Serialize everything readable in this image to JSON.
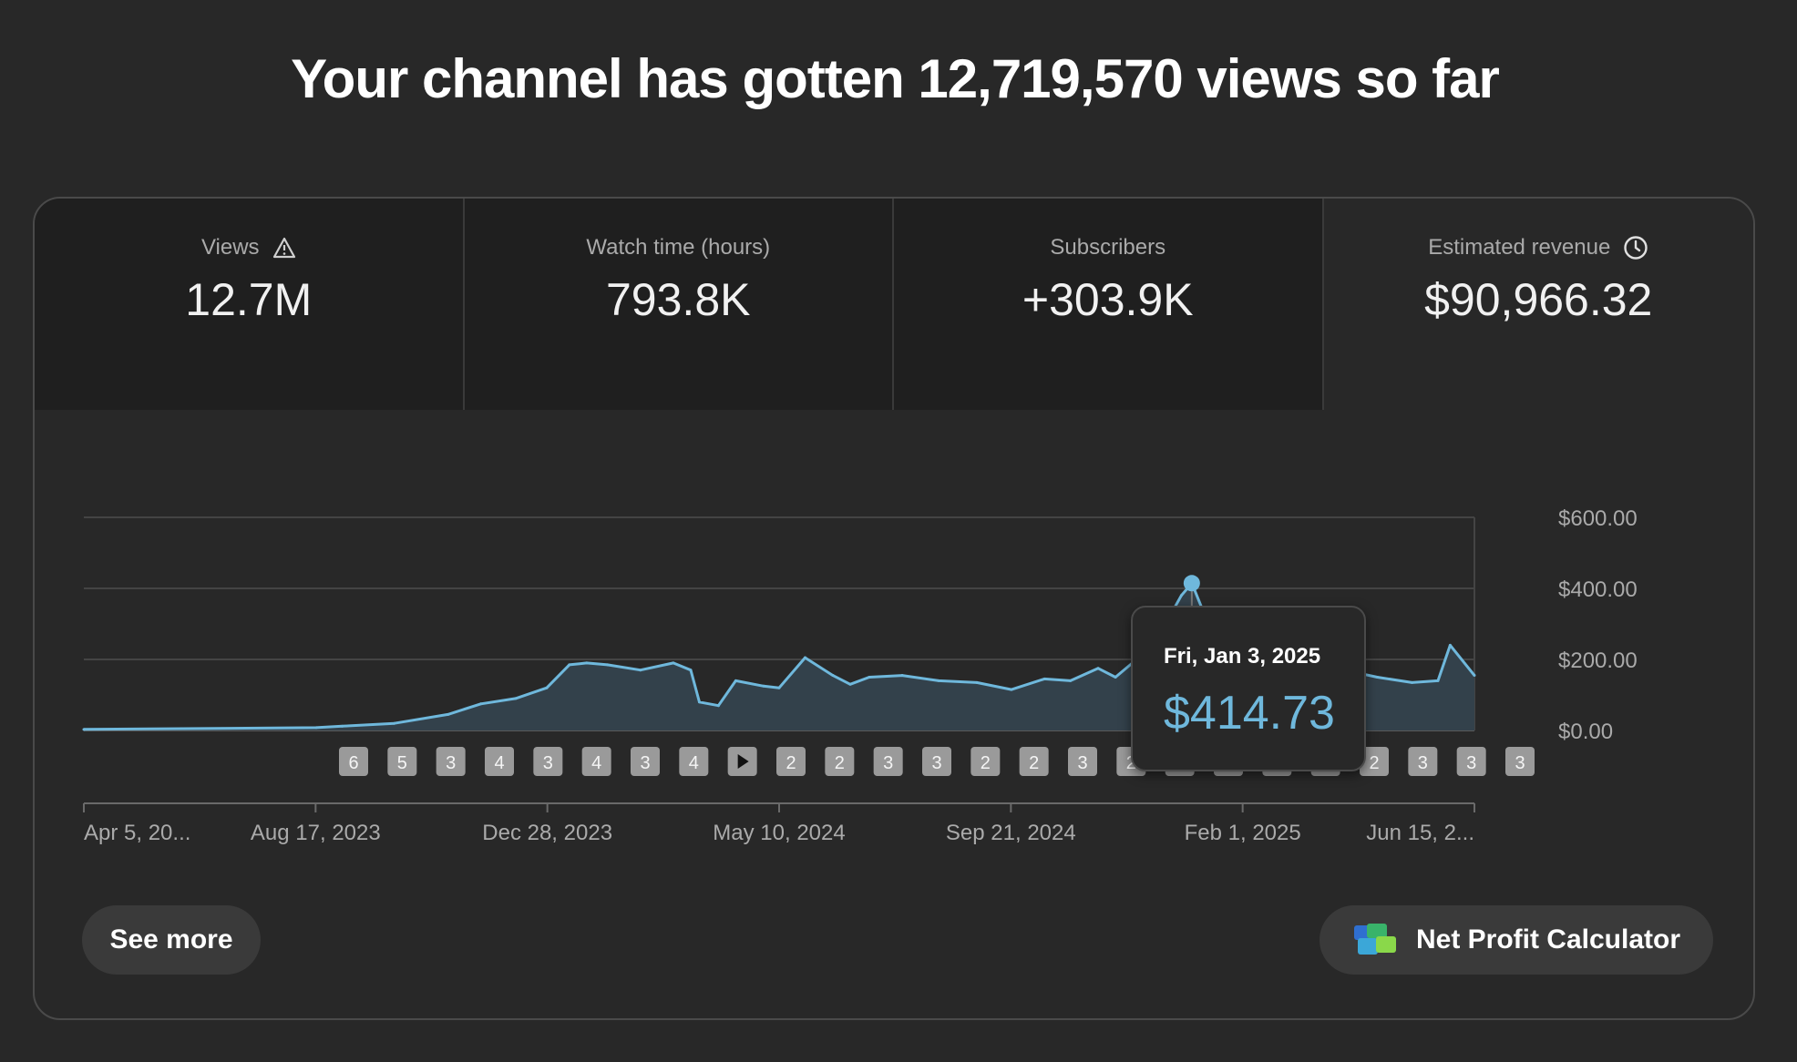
{
  "headline": "Your channel has gotten 12,719,570 views so far",
  "metrics": [
    {
      "label": "Views",
      "value": "12.7M",
      "icon": "warning-triangle-icon"
    },
    {
      "label": "Watch time (hours)",
      "value": "793.8K"
    },
    {
      "label": "Subscribers",
      "value": "+303.9K"
    },
    {
      "label": "Estimated revenue",
      "value": "$90,966.32",
      "icon": "clock-icon",
      "selected": true
    }
  ],
  "tooltip": {
    "date": "Fri, Jan 3, 2025",
    "value": "$414.73"
  },
  "buttons": {
    "see_more": "See more",
    "net_profit_calculator": "Net Profit Calculator"
  },
  "colors": {
    "line": "#6fb8dc",
    "area": "#33414b",
    "background": "#282828"
  },
  "chart_data": {
    "type": "area",
    "series_name": "Estimated revenue",
    "y_ticks": [
      "$600.00",
      "$400.00",
      "$200.00",
      "$0.00"
    ],
    "ylim": [
      0,
      600
    ],
    "x_tick_labels": [
      "Apr 5, 20...",
      "Aug 17, 2023",
      "Dec 28, 2023",
      "May 10, 2024",
      "Sep 21, 2024",
      "Feb 1, 2025",
      "Jun 15, 2..."
    ],
    "x_range": [
      "2023-04-05",
      "2025-06-15"
    ],
    "x": [
      "2023-04-05",
      "2023-08-17",
      "2023-09-01",
      "2023-10-01",
      "2023-11-01",
      "2023-11-20",
      "2023-12-10",
      "2023-12-28",
      "2024-01-10",
      "2024-01-20",
      "2024-02-01",
      "2024-02-20",
      "2024-03-10",
      "2024-03-20",
      "2024-03-25",
      "2024-04-05",
      "2024-04-15",
      "2024-05-01",
      "2024-05-10",
      "2024-05-25",
      "2024-06-10",
      "2024-06-20",
      "2024-07-01",
      "2024-07-20",
      "2024-08-10",
      "2024-09-01",
      "2024-09-21",
      "2024-10-10",
      "2024-10-25",
      "2024-11-10",
      "2024-11-20",
      "2024-12-01",
      "2024-12-10",
      "2024-12-20",
      "2024-12-28",
      "2025-01-03",
      "2025-01-10",
      "2025-01-25",
      "2025-02-01",
      "2025-02-20",
      "2025-03-10",
      "2025-04-01",
      "2025-04-20",
      "2025-05-10",
      "2025-05-25",
      "2025-06-01",
      "2025-06-15"
    ],
    "y": [
      3,
      8,
      12,
      20,
      45,
      75,
      90,
      120,
      185,
      190,
      185,
      170,
      190,
      170,
      80,
      70,
      140,
      125,
      120,
      205,
      155,
      130,
      150,
      155,
      140,
      135,
      115,
      145,
      140,
      175,
      150,
      195,
      160,
      310,
      380,
      414.73,
      330,
      260,
      225,
      210,
      215,
      170,
      150,
      135,
      140,
      240,
      155
    ],
    "highlight": {
      "x": "2025-01-03",
      "y": 414.73
    },
    "annotation_markers": [
      "6",
      "5",
      "3",
      "4",
      "3",
      "4",
      "3",
      "4",
      "play",
      "2",
      "2",
      "3",
      "3",
      "2",
      "2",
      "3",
      "2",
      "2",
      "3",
      "3",
      "3",
      "2",
      "3",
      "3",
      "3"
    ]
  }
}
